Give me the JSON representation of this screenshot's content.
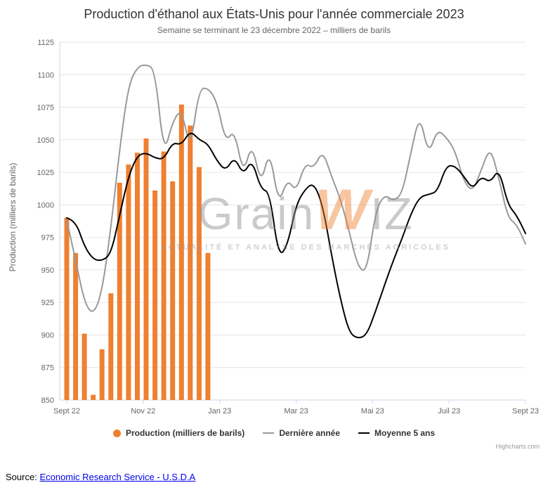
{
  "chart_data": {
    "type": "combo",
    "title": "Production d'éthanol aux États-Unis pour l'année commerciale 2023",
    "subtitle": "Semaine se terminant le 23 décembre 2022 – milliers de barils",
    "xlabel": "",
    "ylabel": "Production (milliers de barils)",
    "ylim": [
      850,
      1125
    ],
    "y_tick_step": 25,
    "grid": "horizontal",
    "legend_position": "bottom",
    "x_unit": "week_index",
    "x_weeks": 52,
    "x_tick_labels": [
      "Sept 22",
      "Nov 22",
      "Jan 23",
      "Mar 23",
      "Mai 23",
      "Juil 23",
      "Sept 23"
    ],
    "series": [
      {
        "name": "Production (milliers de barils)",
        "type": "bar",
        "color": "#ee8031",
        "values": [
          990,
          963,
          901,
          854,
          889,
          932,
          1017,
          1031,
          1040,
          1051,
          1011,
          1041,
          1018,
          1077,
          1061,
          1029,
          963
        ]
      },
      {
        "name": "Dernière année",
        "type": "line",
        "color": "#999999",
        "values": [
          988,
          958,
          925,
          915,
          933,
          982,
          1043,
          1092,
          1106,
          1108,
          1104,
          1038,
          1064,
          1074,
          1042,
          1089,
          1090,
          1080,
          1048,
          1058,
          1023,
          1048,
          1015,
          1043,
          1000,
          1020,
          1010,
          1032,
          1028,
          1042,
          1022,
          1005,
          980,
          952,
          948,
          995,
          1008,
          1003,
          1008,
          1040,
          1070,
          1038,
          1058,
          1052,
          1042,
          1018,
          1010,
          1027,
          1045,
          1020,
          990,
          985,
          970
        ]
      },
      {
        "name": "Moyenne 5 ans",
        "type": "line",
        "color": "#000000",
        "values": [
          990,
          988,
          968,
          958,
          957,
          962,
          992,
          1022,
          1038,
          1040,
          1036,
          1035,
          1048,
          1046,
          1057,
          1050,
          1047,
          1034,
          1026,
          1037,
          1023,
          1035,
          1012,
          1010,
          960,
          968,
          1000,
          1012,
          1017,
          1000,
          962,
          928,
          902,
          897,
          900,
          918,
          938,
          957,
          974,
          993,
          1006,
          1008,
          1010,
          1030,
          1030,
          1022,
          1012,
          1022,
          1017,
          1028,
          1000,
          992,
          978
        ]
      }
    ]
  },
  "watermark": {
    "part1": "Grain",
    "part2": "W",
    "part3": "IZ",
    "tagline": "ACTUALITÉ ET ANALYSE DES MARCHÉS AGRICOLES",
    "orange": "#f08030"
  },
  "credits": "Highcharts.com",
  "source": {
    "label": "Source:",
    "link_text": "Economic Research Service - U.S.D.A"
  }
}
